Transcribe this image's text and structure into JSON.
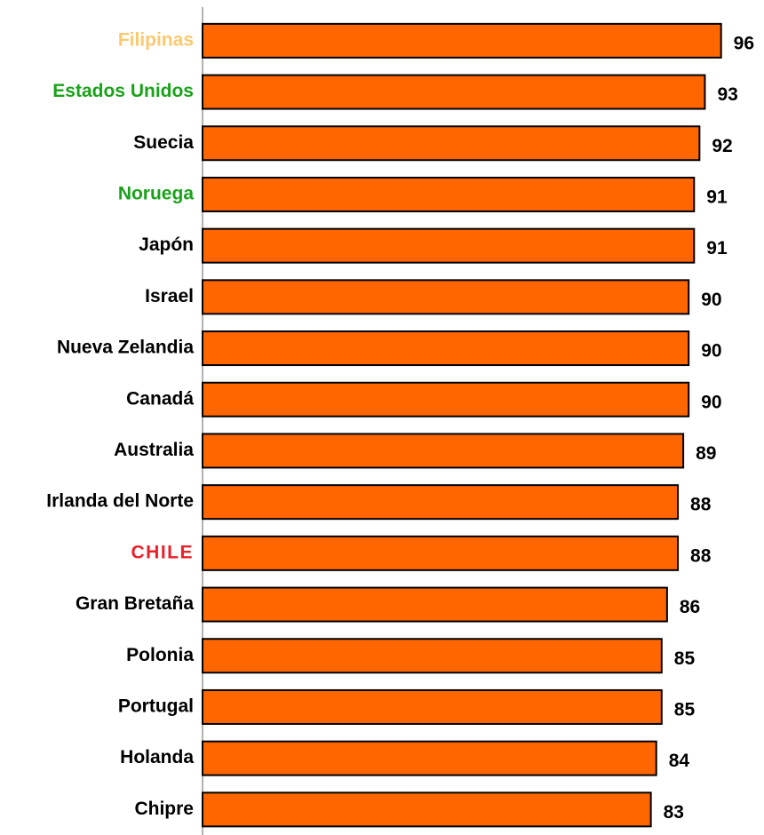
{
  "chart_data": {
    "type": "bar",
    "orientation": "horizontal",
    "categories": [
      "Filipinas",
      "Estados Unidos",
      "Suecia",
      "Noruega",
      "Japón",
      "Israel",
      "Nueva Zelandia",
      "Canadá",
      "Australia",
      "Irlanda del Norte",
      "CHILE",
      "Gran Bretaña",
      "Polonia",
      "Portugal",
      "Holanda",
      "Chipre"
    ],
    "values": [
      96,
      93,
      92,
      91,
      91,
      90,
      90,
      90,
      89,
      88,
      88,
      86,
      85,
      85,
      84,
      83
    ],
    "color": "#ff6600",
    "label_colors": [
      "#fcc86e",
      "#1aa31a",
      "#000000",
      "#1aa31a",
      "#000000",
      "#000000",
      "#000000",
      "#000000",
      "#000000",
      "#000000",
      "#e8202a",
      "#000000",
      "#000000",
      "#000000",
      "#000000",
      "#000000"
    ],
    "xlim": [
      0,
      100
    ]
  }
}
